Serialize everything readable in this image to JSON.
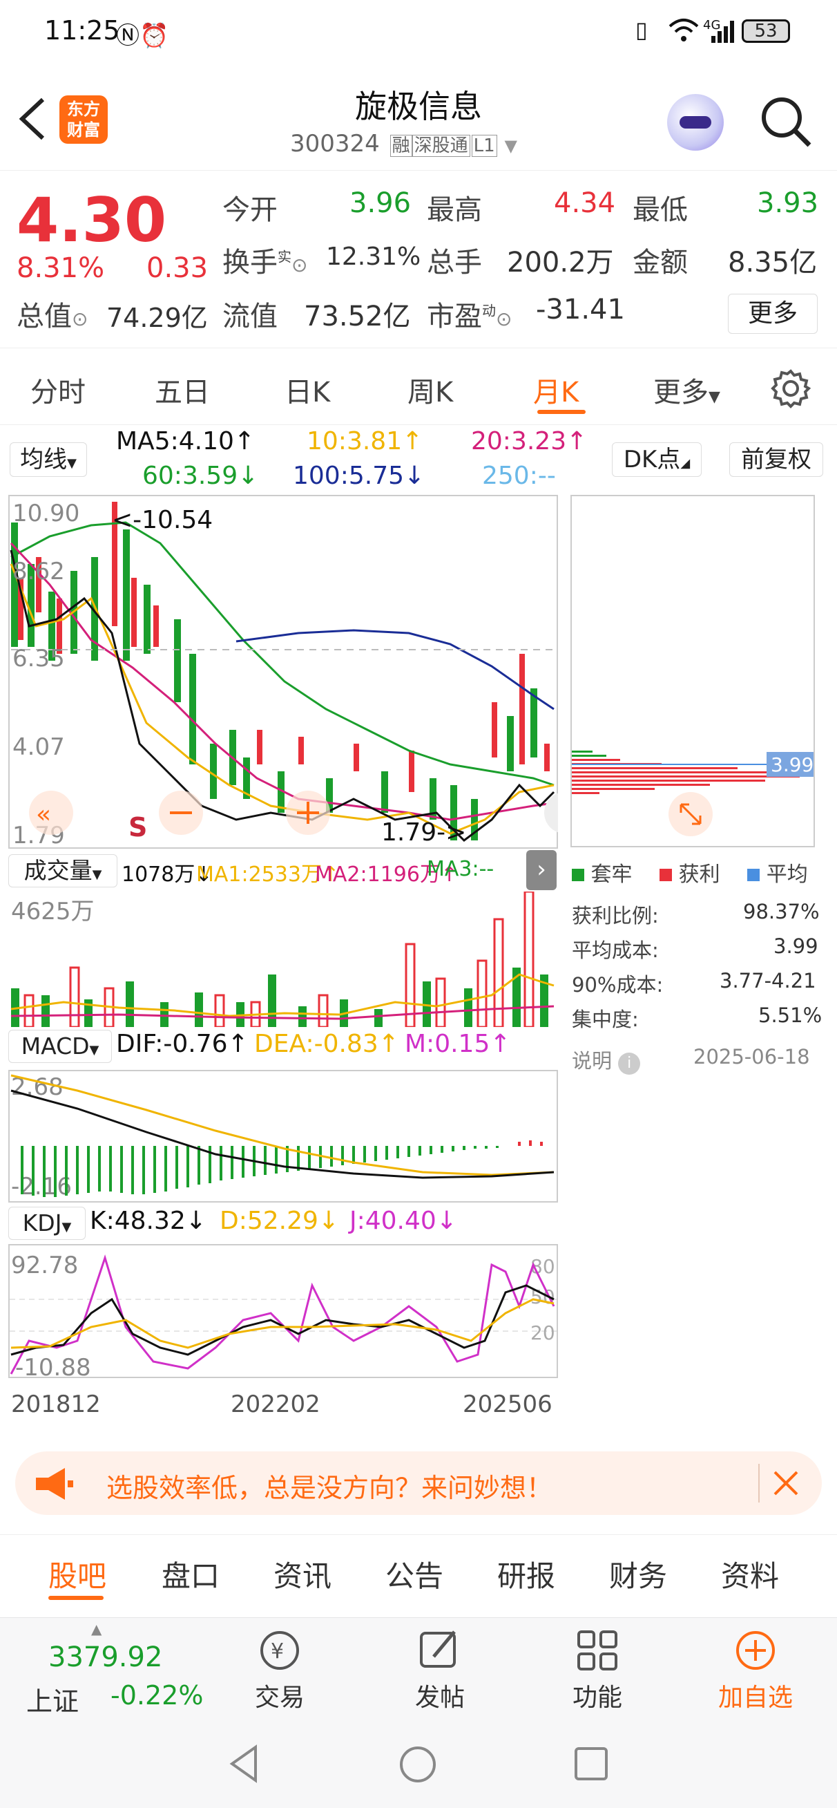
{
  "status_bar": {
    "time": "11:25",
    "battery": "53",
    "network": "4G"
  },
  "header": {
    "title": "旋极信息",
    "code": "300324",
    "tags": [
      "融",
      "深股通",
      "L1"
    ],
    "logo_line1": "东方",
    "logo_line2": "财富"
  },
  "quote": {
    "price": "4.30",
    "change_pct": "8.31%",
    "change": "0.33",
    "items": [
      {
        "label": "今开",
        "value": "3.96"
      },
      {
        "label": "最高",
        "value": "4.34"
      },
      {
        "label": "最低",
        "value": "3.93"
      },
      {
        "label": "换手",
        "sup": "实",
        "value": "12.31%"
      },
      {
        "label": "总手",
        "value": "200.2万"
      },
      {
        "label": "金额",
        "value": "8.35亿"
      },
      {
        "label": "总值",
        "value": "74.29亿"
      },
      {
        "label": "流值",
        "value": "73.52亿"
      },
      {
        "label": "市盈",
        "sup": "动",
        "value": "-31.41"
      }
    ],
    "more": "更多"
  },
  "tabs": [
    "分时",
    "五日",
    "日K",
    "周K",
    "月K",
    "更多"
  ],
  "active_tab": "月K",
  "ma": {
    "selector": "均线",
    "ma5": "MA5:4.10↑",
    "ma10": "10:3.81↑",
    "ma20": "20:3.23↑",
    "ma60": "60:3.59↓",
    "ma100": "100:5.75↓",
    "ma250": "250:--",
    "dk": "DK点",
    "fq": "前复权"
  },
  "kline": {
    "ticks": [
      "10.90",
      "8.62",
      "6.35",
      "4.07",
      "1.79"
    ],
    "high_marker": "<-10.54",
    "low_marker": "1.79->",
    "s_marker": "S"
  },
  "chip": {
    "price_tag": "3.99",
    "legend": [
      "套牢",
      "获利",
      "平均"
    ],
    "rows": [
      {
        "label": "获利比例:",
        "value": "98.37%"
      },
      {
        "label": "平均成本:",
        "value": "3.99"
      },
      {
        "label": "90%成本:",
        "value": "3.77-4.21"
      },
      {
        "label": "集中度:",
        "value": "5.51%"
      }
    ],
    "note": "说明",
    "date": "2025-06-18"
  },
  "volume": {
    "selector": "成交量",
    "vol": "1078万↓",
    "ma1": "MA1:2533万↑",
    "ma2": "MA2:1196万↑",
    "ma3": "MA3:--",
    "max": "4625万"
  },
  "macd": {
    "selector": "MACD",
    "dif": "DIF:-0.76↑",
    "dea": "DEA:-0.83↑",
    "m": "M:0.15↑",
    "top": "2.68",
    "bottom": "-2.16"
  },
  "kdj": {
    "selector": "KDJ",
    "k": "K:48.32↓",
    "d": "D:52.29↓",
    "j": "J:40.40↓",
    "top": "92.78",
    "bottom": "-10.88",
    "levels": [
      "80",
      "50",
      "20"
    ]
  },
  "xaxis": [
    "201812",
    "202202",
    "202506"
  ],
  "banner": {
    "text": "选股效率低，总是没方向？来问妙想！"
  },
  "bottom_tabs": [
    "股吧",
    "盘口",
    "资讯",
    "公告",
    "研报",
    "财务",
    "资料"
  ],
  "active_bottom_tab": "股吧",
  "index": {
    "value": "3379.92",
    "name": "上证",
    "change": "-0.22%"
  },
  "nav": [
    {
      "label": "交易"
    },
    {
      "label": "发帖"
    },
    {
      "label": "功能"
    },
    {
      "label": "加自选"
    }
  ],
  "colors": {
    "red": "#e8313a",
    "green": "#1a9e2c",
    "orange": "#ff6a13"
  }
}
